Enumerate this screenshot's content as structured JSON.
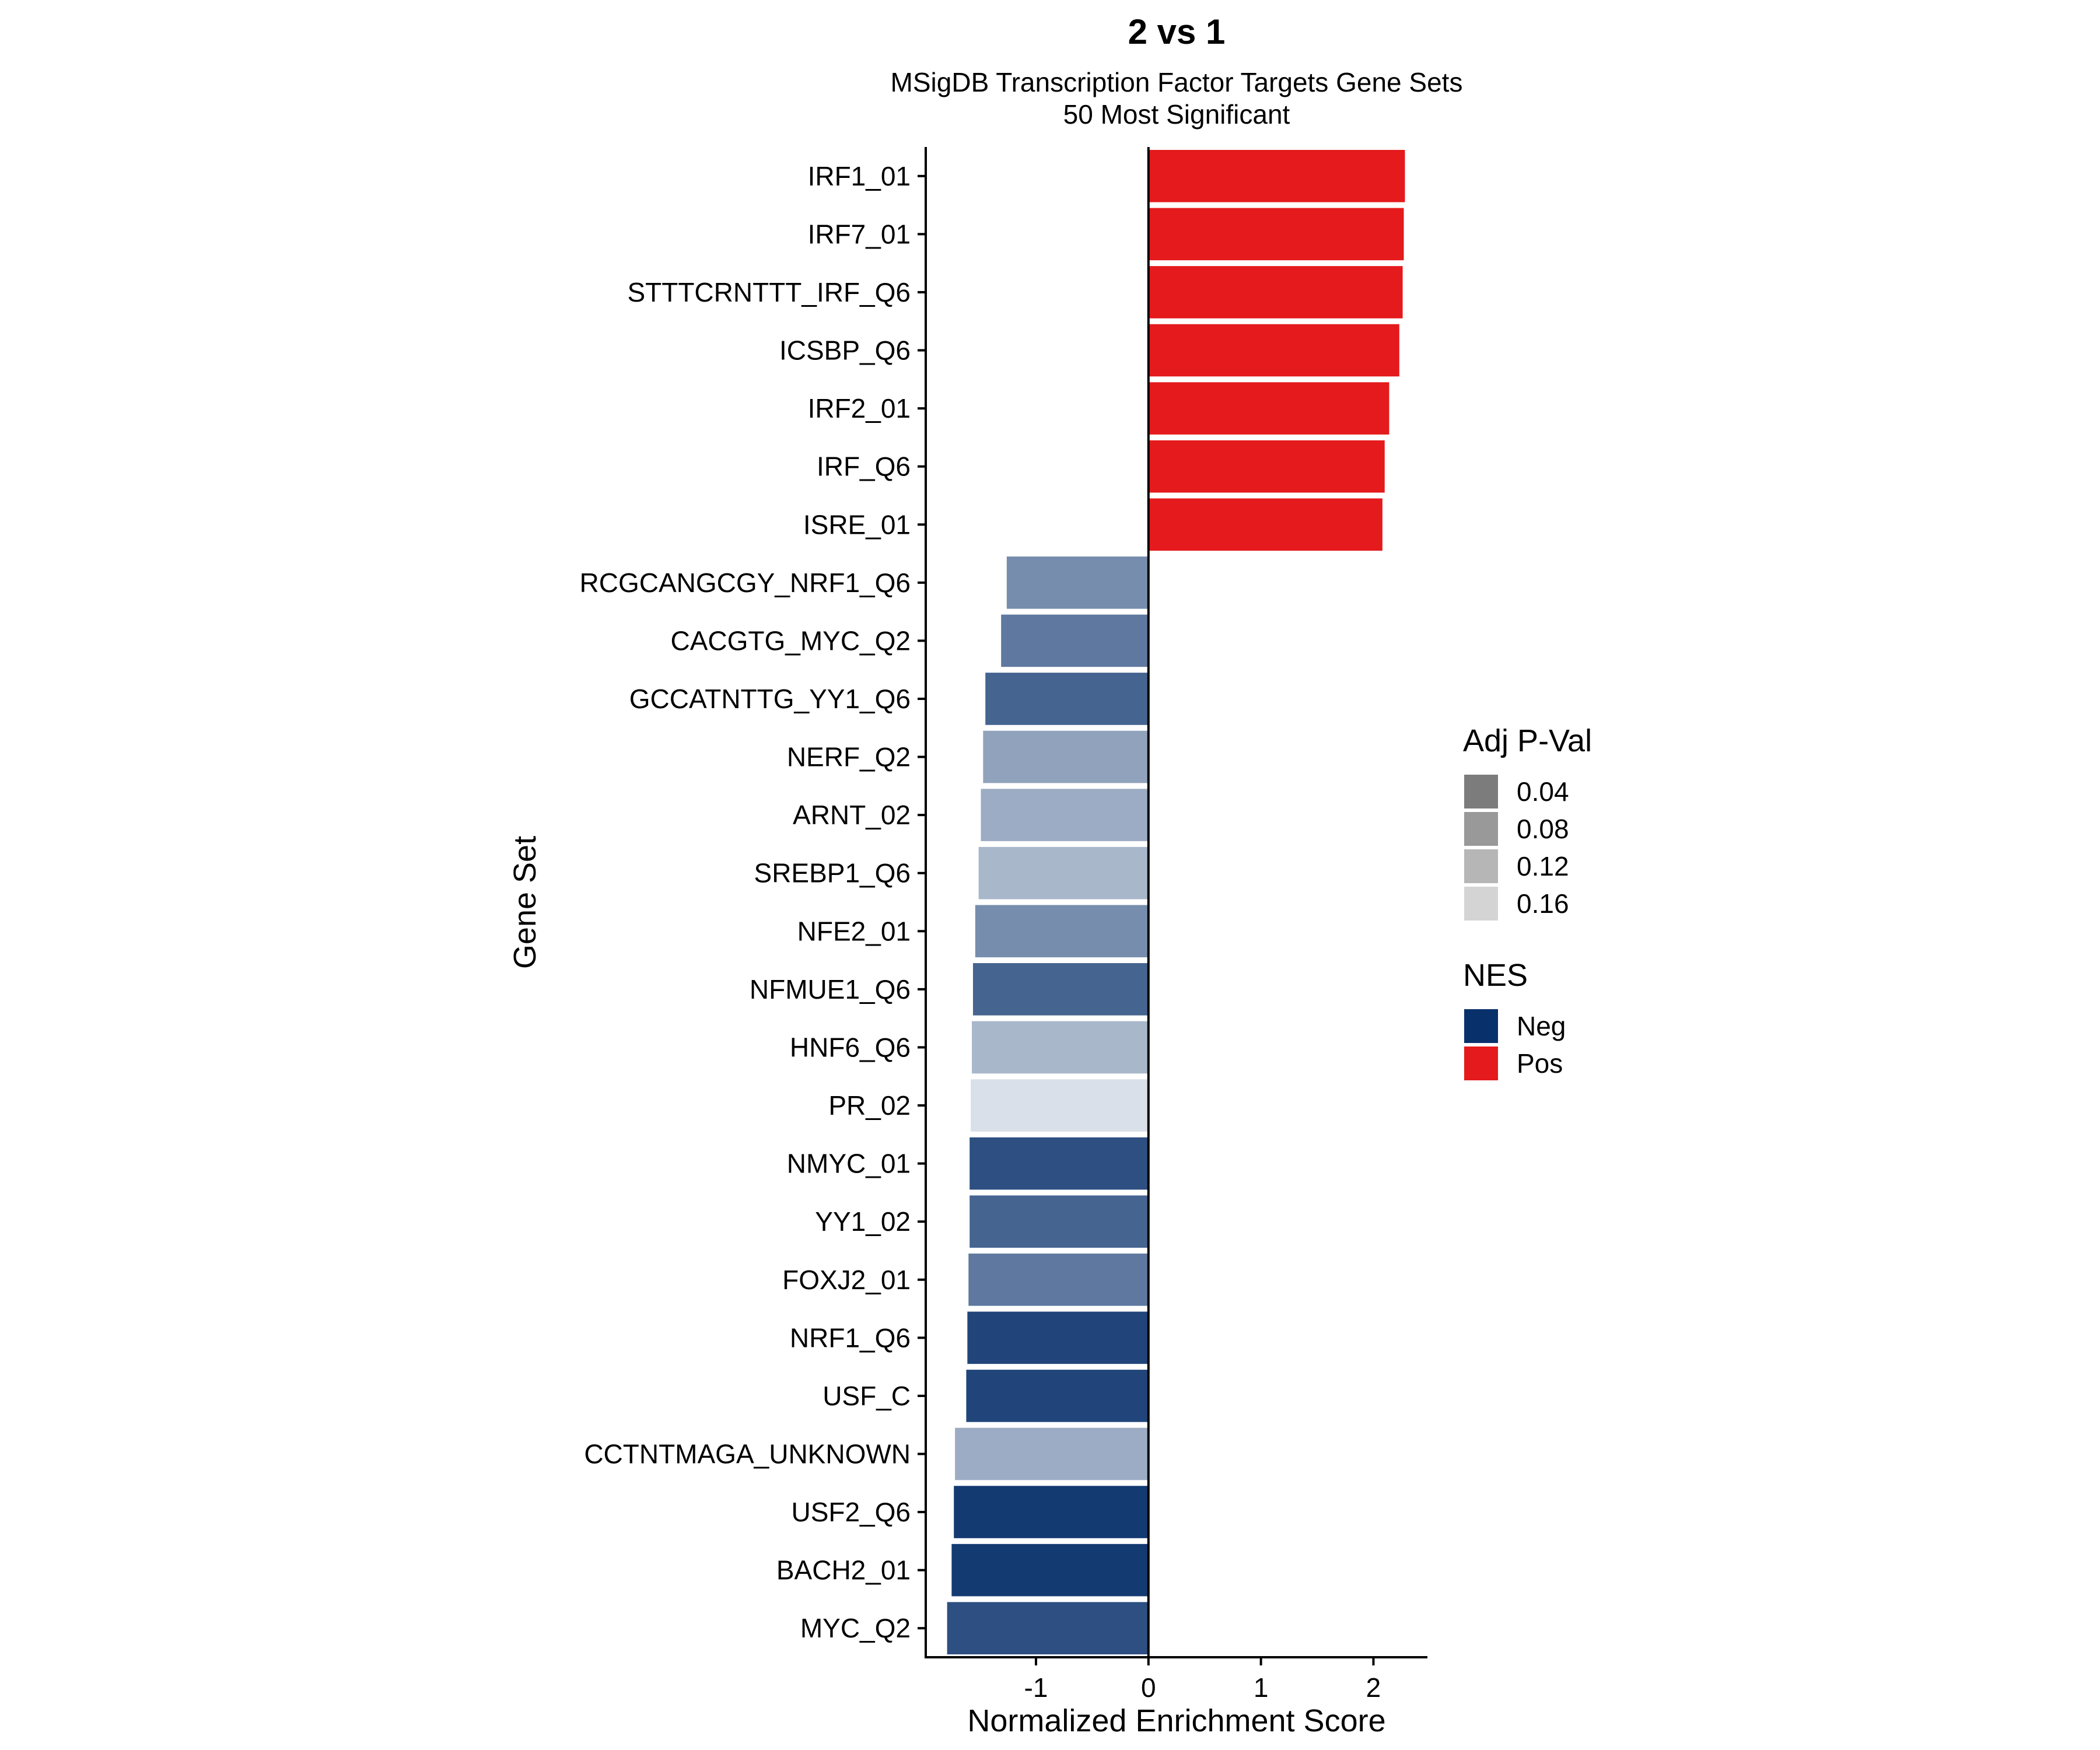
{
  "chart_data": {
    "type": "bar",
    "orientation": "horizontal",
    "title": "2 vs 1",
    "subtitle_lines": [
      "MSigDB Transcription Factor Targets Gene Sets",
      "50 Most Significant"
    ],
    "xlabel": "Normalized Enrichment Score",
    "ylabel": "Gene Set",
    "xlim": [
      -1.98,
      2.48
    ],
    "xticks": [
      -1,
      0,
      1,
      2
    ],
    "xtick_labels": [
      "-1",
      "0",
      "1",
      "2"
    ],
    "grid": false,
    "categories": [
      "IRF1_01",
      "IRF7_01",
      "STTTCRNTTT_IRF_Q6",
      "ICSBP_Q6",
      "IRF2_01",
      "IRF_Q6",
      "ISRE_01",
      "RCGCANGCGY_NRF1_Q6",
      "CACGTG_MYC_Q2",
      "GCCATNTTG_YY1_Q6",
      "NERF_Q2",
      "ARNT_02",
      "SREBP1_Q6",
      "NFE2_01",
      "NFMUE1_Q6",
      "HNF6_Q6",
      "PR_02",
      "NMYC_01",
      "YY1_02",
      "FOXJ2_01",
      "NRF1_Q6",
      "USF_C",
      "CCTNTMAGA_UNKNOWN",
      "USF2_Q6",
      "BACH2_01",
      "MYC_Q2"
    ],
    "values": [
      2.28,
      2.27,
      2.26,
      2.23,
      2.14,
      2.1,
      2.08,
      -1.26,
      -1.31,
      -1.45,
      -1.47,
      -1.49,
      -1.51,
      -1.54,
      -1.56,
      -1.57,
      -1.58,
      -1.59,
      -1.59,
      -1.6,
      -1.61,
      -1.62,
      -1.72,
      -1.73,
      -1.75,
      -1.79
    ],
    "adj_pval": [
      0.0,
      0.0,
      0.0,
      0.0,
      0.0,
      0.0,
      0.0,
      0.09,
      0.07,
      0.05,
      0.11,
      0.12,
      0.13,
      0.09,
      0.05,
      0.13,
      0.17,
      0.03,
      0.05,
      0.07,
      0.02,
      0.02,
      0.12,
      0.01,
      0.01,
      0.03
    ],
    "legend": {
      "placement": "right",
      "pval": {
        "title": "Adj P-Val",
        "labels": [
          "0.04",
          "0.08",
          "0.12",
          "0.16"
        ],
        "colors": [
          "#7c7c7c",
          "#999999",
          "#b6b6b6",
          "#d4d4d4"
        ]
      },
      "nes": {
        "title": "NES",
        "labels": [
          "Neg",
          "Pos"
        ],
        "colors": [
          "#08306b",
          "#e41a1c"
        ]
      }
    }
  }
}
